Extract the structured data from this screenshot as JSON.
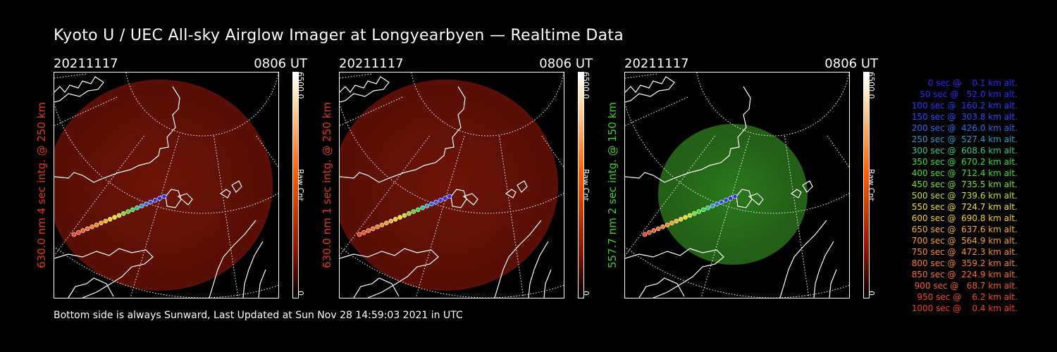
{
  "title": "Kyoto U / UEC All-sky Airglow Imager at Longyearbyen — Realtime Data",
  "footer": "Bottom side is always Sunward, Last Updated at Sun Nov 28 14:59:03 2021 in UTC",
  "panels": [
    {
      "date": "20211117",
      "time": "0806 UT",
      "label": "630.0 nm 4 sec intg. @ 250 km",
      "label_color": "#e03a20",
      "max": "6500.0",
      "min": "0",
      "cbar_label": "Raw Cnt",
      "glow": "red",
      "cbar_color": "#ff5a00"
    },
    {
      "date": "20211117",
      "time": "0806 UT",
      "label": "630.0 nm 1 sec intg. @ 250 km",
      "label_color": "#e03a20",
      "max": "6500.0",
      "min": "0",
      "cbar_label": "Raw Cnt",
      "glow": "red",
      "cbar_color": "#ff5a00"
    },
    {
      "date": "20211117",
      "time": "0806 UT",
      "label": "557.7 nm 2 sec intg. @ 150 km",
      "label_color": "#3ecf2a",
      "max": "6500.0",
      "min": "0",
      "cbar_label": "Raw Cnt",
      "glow": "green",
      "cbar_color": "#ff5a00"
    }
  ],
  "legend": [
    {
      "text": "0 sec @    0.1 km alt.",
      "color": "#2a2aff"
    },
    {
      "text": "50 sec @   52.0 km alt.",
      "color": "#2a2aff"
    },
    {
      "text": "100 sec @  160.2 km alt.",
      "color": "#2a3aff"
    },
    {
      "text": "150 sec @  303.8 km alt.",
      "color": "#2a4aff"
    },
    {
      "text": "200 sec @  426.0 km alt.",
      "color": "#2a6aef"
    },
    {
      "text": "250 sec @  527.4 km alt.",
      "color": "#2a9ad0"
    },
    {
      "text": "300 sec @  608.6 km alt.",
      "color": "#2ac89a"
    },
    {
      "text": "350 sec @  670.2 km alt.",
      "color": "#2ae040"
    },
    {
      "text": "400 sec @  712.4 km alt.",
      "color": "#40e020"
    },
    {
      "text": "450 sec @  735.5 km alt.",
      "color": "#80e020"
    },
    {
      "text": "500 sec @  739.6 km alt.",
      "color": "#c0e020"
    },
    {
      "text": "550 sec @  724.7 km alt.",
      "color": "#f0e020"
    },
    {
      "text": "600 sec @  690.8 km alt.",
      "color": "#f8d020"
    },
    {
      "text": "650 sec @  637.6 km alt.",
      "color": "#f8b020"
    },
    {
      "text": "700 sec @  564.9 km alt.",
      "color": "#f8a020"
    },
    {
      "text": "750 sec @  472.3 km alt.",
      "color": "#f89020"
    },
    {
      "text": "800 sec @  359.2 km alt.",
      "color": "#f88020"
    },
    {
      "text": "850 sec @  224.9 km alt.",
      "color": "#f87020"
    },
    {
      "text": "900 sec @   68.7 km alt.",
      "color": "#f85a20"
    },
    {
      "text": "950 sec @    6.2 km alt.",
      "color": "#f84a20"
    },
    {
      "text": "1000 sec @    0.4 km alt.",
      "color": "#f83a20"
    }
  ]
}
